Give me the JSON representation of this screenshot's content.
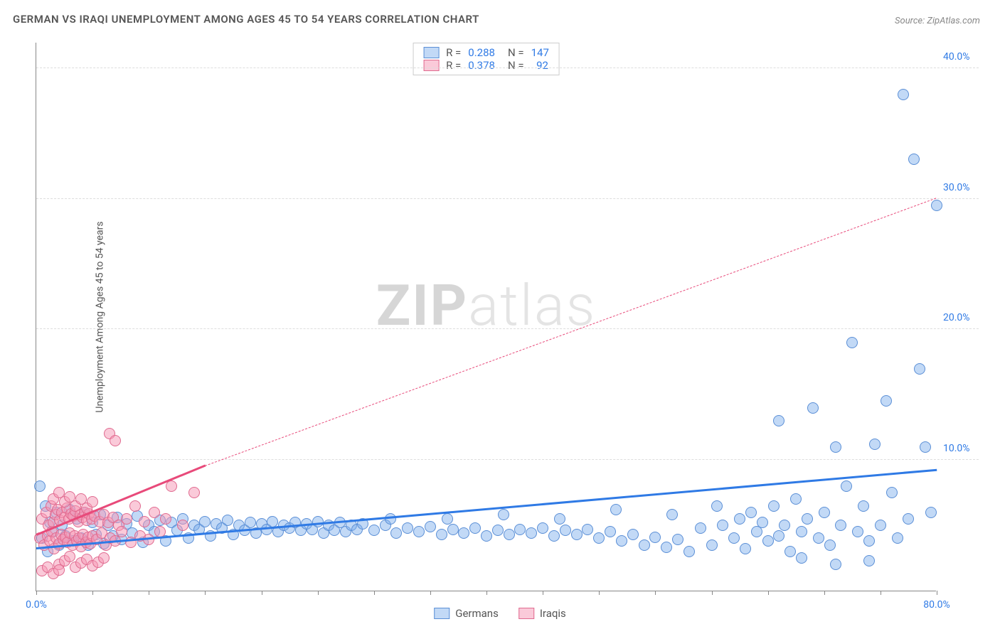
{
  "title": "GERMAN VS IRAQI UNEMPLOYMENT AMONG AGES 45 TO 54 YEARS CORRELATION CHART",
  "source": "Source: ZipAtlas.com",
  "ylabel": "Unemployment Among Ages 45 to 54 years",
  "watermark_bold": "ZIP",
  "watermark_light": "atlas",
  "chart": {
    "type": "scatter",
    "background_color": "#ffffff",
    "grid_color": "#dddddd",
    "axis_color": "#888888",
    "xlim": [
      0,
      80
    ],
    "ylim": [
      0,
      42
    ],
    "x_ticks": [
      0,
      5,
      10,
      15,
      20,
      25,
      30,
      35,
      40,
      45,
      50,
      55,
      60,
      65,
      70,
      75,
      80
    ],
    "x_tick_labels": {
      "0": "0.0%",
      "80": "80.0%"
    },
    "x_tick_label_color_left": "#2f7ae5",
    "x_tick_label_color_right": "#2f7ae5",
    "y_ticks": [
      10,
      20,
      30,
      40
    ],
    "y_tick_labels": {
      "10": "10.0%",
      "20": "20.0%",
      "30": "30.0%",
      "40": "40.0%"
    },
    "y_tick_label_color": "#2f7ae5",
    "marker_radius": 8,
    "marker_border_width": 1.5,
    "series": [
      {
        "name": "Germans",
        "label": "Germans",
        "fill_color": "rgba(120,170,235,0.45)",
        "border_color": "#5b8fd6",
        "trend_color": "#2f7ae5",
        "trend_solid": {
          "x1": 0,
          "y1": 3.2,
          "x2": 80,
          "y2": 9.2
        },
        "R": "0.288",
        "N": "147",
        "points": [
          [
            0.3,
            8.0
          ],
          [
            0.5,
            4.0
          ],
          [
            0.8,
            6.5
          ],
          [
            1.0,
            3.0
          ],
          [
            1.2,
            5.2
          ],
          [
            1.5,
            4.5
          ],
          [
            1.8,
            6.0
          ],
          [
            2.0,
            3.5
          ],
          [
            2.3,
            5.0
          ],
          [
            2.6,
            4.2
          ],
          [
            3.0,
            6.2
          ],
          [
            3.3,
            3.8
          ],
          [
            3.6,
            5.5
          ],
          [
            4.0,
            4.0
          ],
          [
            4.3,
            6.0
          ],
          [
            4.6,
            3.5
          ],
          [
            5.0,
            5.2
          ],
          [
            5.3,
            4.3
          ],
          [
            5.7,
            5.8
          ],
          [
            6.0,
            3.6
          ],
          [
            6.4,
            5.0
          ],
          [
            6.8,
            4.2
          ],
          [
            7.2,
            5.6
          ],
          [
            7.6,
            3.9
          ],
          [
            8.0,
            5.1
          ],
          [
            8.5,
            4.4
          ],
          [
            9.0,
            5.7
          ],
          [
            9.5,
            3.7
          ],
          [
            10.0,
            5.0
          ],
          [
            10.5,
            4.5
          ],
          [
            11.0,
            5.4
          ],
          [
            11.5,
            3.8
          ],
          [
            12.0,
            5.2
          ],
          [
            12.5,
            4.6
          ],
          [
            13.0,
            5.5
          ],
          [
            13.5,
            4.0
          ],
          [
            14.0,
            5.0
          ],
          [
            14.5,
            4.7
          ],
          [
            15.0,
            5.3
          ],
          [
            15.5,
            4.2
          ],
          [
            16.0,
            5.1
          ],
          [
            16.5,
            4.8
          ],
          [
            17.0,
            5.4
          ],
          [
            17.5,
            4.3
          ],
          [
            18.0,
            5.0
          ],
          [
            18.5,
            4.6
          ],
          [
            19.0,
            5.2
          ],
          [
            19.5,
            4.4
          ],
          [
            20.0,
            5.1
          ],
          [
            20.5,
            4.7
          ],
          [
            21.0,
            5.3
          ],
          [
            21.5,
            4.5
          ],
          [
            22.0,
            5.0
          ],
          [
            22.5,
            4.8
          ],
          [
            23.0,
            5.2
          ],
          [
            23.5,
            4.6
          ],
          [
            24.0,
            5.1
          ],
          [
            24.5,
            4.7
          ],
          [
            25.0,
            5.3
          ],
          [
            25.5,
            4.4
          ],
          [
            26.0,
            5.0
          ],
          [
            26.5,
            4.6
          ],
          [
            27.0,
            5.2
          ],
          [
            27.5,
            4.5
          ],
          [
            28.0,
            5.0
          ],
          [
            28.5,
            4.7
          ],
          [
            29.0,
            5.1
          ],
          [
            30.0,
            4.6
          ],
          [
            31.0,
            5.0
          ],
          [
            32.0,
            4.4
          ],
          [
            33.0,
            4.8
          ],
          [
            34.0,
            4.5
          ],
          [
            35.0,
            4.9
          ],
          [
            36.0,
            4.3
          ],
          [
            37.0,
            4.7
          ],
          [
            38.0,
            4.4
          ],
          [
            39.0,
            4.8
          ],
          [
            40.0,
            4.2
          ],
          [
            41.0,
            4.6
          ],
          [
            42.0,
            4.3
          ],
          [
            43.0,
            4.7
          ],
          [
            44.0,
            4.4
          ],
          [
            45.0,
            4.8
          ],
          [
            46.0,
            4.2
          ],
          [
            47.0,
            4.6
          ],
          [
            48.0,
            4.3
          ],
          [
            49.0,
            4.7
          ],
          [
            50.0,
            4.0
          ],
          [
            51.0,
            4.5
          ],
          [
            52.0,
            3.8
          ],
          [
            53.0,
            4.3
          ],
          [
            54.0,
            3.5
          ],
          [
            55.0,
            4.1
          ],
          [
            56.0,
            3.3
          ],
          [
            57.0,
            3.9
          ],
          [
            58.0,
            3.0
          ],
          [
            59.0,
            4.8
          ],
          [
            60.0,
            3.5
          ],
          [
            61.0,
            5.0
          ],
          [
            62.0,
            4.0
          ],
          [
            62.5,
            5.5
          ],
          [
            63.0,
            3.2
          ],
          [
            63.5,
            6.0
          ],
          [
            64.0,
            4.5
          ],
          [
            64.5,
            5.2
          ],
          [
            65.0,
            3.8
          ],
          [
            65.5,
            6.5
          ],
          [
            66.0,
            4.2
          ],
          [
            66.5,
            5.0
          ],
          [
            67.0,
            3.0
          ],
          [
            67.5,
            7.0
          ],
          [
            68.0,
            4.5
          ],
          [
            68.5,
            5.5
          ],
          [
            69.0,
            14.0
          ],
          [
            69.5,
            4.0
          ],
          [
            70.0,
            6.0
          ],
          [
            70.5,
            3.5
          ],
          [
            71.0,
            11.0
          ],
          [
            71.5,
            5.0
          ],
          [
            72.0,
            8.0
          ],
          [
            72.5,
            19.0
          ],
          [
            73.0,
            4.5
          ],
          [
            73.5,
            6.5
          ],
          [
            74.0,
            3.8
          ],
          [
            74.5,
            11.2
          ],
          [
            75.0,
            5.0
          ],
          [
            75.5,
            14.5
          ],
          [
            76.0,
            7.5
          ],
          [
            76.5,
            4.0
          ],
          [
            77.0,
            38.0
          ],
          [
            77.5,
            5.5
          ],
          [
            78.0,
            33.0
          ],
          [
            78.5,
            17.0
          ],
          [
            79.0,
            11.0
          ],
          [
            79.5,
            6.0
          ],
          [
            80.0,
            29.5
          ],
          [
            71.0,
            2.0
          ],
          [
            74.0,
            2.3
          ],
          [
            66.0,
            13.0
          ],
          [
            60.5,
            6.5
          ],
          [
            56.5,
            5.8
          ],
          [
            51.5,
            6.2
          ],
          [
            46.5,
            5.5
          ],
          [
            41.5,
            5.8
          ],
          [
            36.5,
            5.5
          ],
          [
            31.5,
            5.5
          ],
          [
            68.0,
            2.5
          ]
        ]
      },
      {
        "name": "Iraqis",
        "label": "Iraqis",
        "fill_color": "rgba(245,150,180,0.5)",
        "border_color": "#e06a8f",
        "trend_color": "#e84a7a",
        "trend_solid": {
          "x1": 0,
          "y1": 4.2,
          "x2": 15,
          "y2": 9.5
        },
        "trend_dashed": {
          "x1": 15,
          "y1": 9.5,
          "x2": 80,
          "y2": 30.0
        },
        "R": "0.378",
        "N": "92",
        "points": [
          [
            0.3,
            4.0
          ],
          [
            0.5,
            5.5
          ],
          [
            0.7,
            3.5
          ],
          [
            0.9,
            6.0
          ],
          [
            1.0,
            4.2
          ],
          [
            1.1,
            5.0
          ],
          [
            1.2,
            3.8
          ],
          [
            1.3,
            6.5
          ],
          [
            1.4,
            4.5
          ],
          [
            1.5,
            5.2
          ],
          [
            1.6,
            3.2
          ],
          [
            1.7,
            5.8
          ],
          [
            1.8,
            4.0
          ],
          [
            1.9,
            6.2
          ],
          [
            2.0,
            3.6
          ],
          [
            2.1,
            5.4
          ],
          [
            2.2,
            4.3
          ],
          [
            2.3,
            6.0
          ],
          [
            2.4,
            3.9
          ],
          [
            2.5,
            5.6
          ],
          [
            2.6,
            4.1
          ],
          [
            2.7,
            6.3
          ],
          [
            2.8,
            3.7
          ],
          [
            2.9,
            5.5
          ],
          [
            3.0,
            4.4
          ],
          [
            3.1,
            5.9
          ],
          [
            3.2,
            3.5
          ],
          [
            3.3,
            5.7
          ],
          [
            3.4,
            4.2
          ],
          [
            3.5,
            6.1
          ],
          [
            3.6,
            3.8
          ],
          [
            3.7,
            5.3
          ],
          [
            3.8,
            4.0
          ],
          [
            3.9,
            5.8
          ],
          [
            4.0,
            3.4
          ],
          [
            4.1,
            5.6
          ],
          [
            4.2,
            4.3
          ],
          [
            4.3,
            6.0
          ],
          [
            4.4,
            3.7
          ],
          [
            4.5,
            5.4
          ],
          [
            4.6,
            4.1
          ],
          [
            4.7,
            5.9
          ],
          [
            4.8,
            3.6
          ],
          [
            4.9,
            5.5
          ],
          [
            5.0,
            4.2
          ],
          [
            5.2,
            5.7
          ],
          [
            5.4,
            3.9
          ],
          [
            5.6,
            5.3
          ],
          [
            5.8,
            4.4
          ],
          [
            6.0,
            5.8
          ],
          [
            6.2,
            3.5
          ],
          [
            6.4,
            5.2
          ],
          [
            6.6,
            4.0
          ],
          [
            6.8,
            5.6
          ],
          [
            7.0,
            3.8
          ],
          [
            7.3,
            5.0
          ],
          [
            7.6,
            4.5
          ],
          [
            8.0,
            5.5
          ],
          [
            8.4,
            3.7
          ],
          [
            8.8,
            6.5
          ],
          [
            9.2,
            4.2
          ],
          [
            9.6,
            5.3
          ],
          [
            10.0,
            3.9
          ],
          [
            10.5,
            6.0
          ],
          [
            11.0,
            4.5
          ],
          [
            12.0,
            8.0
          ],
          [
            6.5,
            12.0
          ],
          [
            7.0,
            11.5
          ],
          [
            2.0,
            2.0
          ],
          [
            2.5,
            2.3
          ],
          [
            3.0,
            2.6
          ],
          [
            3.5,
            1.8
          ],
          [
            4.0,
            2.1
          ],
          [
            4.5,
            2.4
          ],
          [
            5.0,
            1.9
          ],
          [
            5.5,
            2.2
          ],
          [
            6.0,
            2.5
          ],
          [
            1.5,
            7.0
          ],
          [
            2.0,
            7.5
          ],
          [
            2.5,
            6.8
          ],
          [
            3.0,
            7.2
          ],
          [
            3.5,
            6.5
          ],
          [
            4.0,
            7.0
          ],
          [
            4.5,
            6.3
          ],
          [
            5.0,
            6.8
          ],
          [
            0.5,
            1.5
          ],
          [
            1.0,
            1.8
          ],
          [
            1.5,
            1.3
          ],
          [
            2.0,
            1.6
          ],
          [
            14.0,
            7.5
          ],
          [
            13.0,
            5.0
          ],
          [
            11.5,
            5.5
          ]
        ]
      }
    ]
  },
  "stats_box": {
    "rows": [
      {
        "swatch_fill": "rgba(120,170,235,0.45)",
        "swatch_border": "#5b8fd6",
        "r_label": "R =",
        "r_val": "0.288",
        "n_label": "N =",
        "n_val": "147",
        "val_color": "#2f7ae5"
      },
      {
        "swatch_fill": "rgba(245,150,180,0.5)",
        "swatch_border": "#e06a8f",
        "r_label": "R =",
        "r_val": "0.378",
        "n_label": "N =",
        "n_val": "  92",
        "val_color": "#2f7ae5"
      }
    ]
  },
  "bottom_legend": [
    {
      "swatch_fill": "rgba(120,170,235,0.45)",
      "swatch_border": "#5b8fd6",
      "label": "Germans"
    },
    {
      "swatch_fill": "rgba(245,150,180,0.5)",
      "swatch_border": "#e06a8f",
      "label": "Iraqis"
    }
  ]
}
